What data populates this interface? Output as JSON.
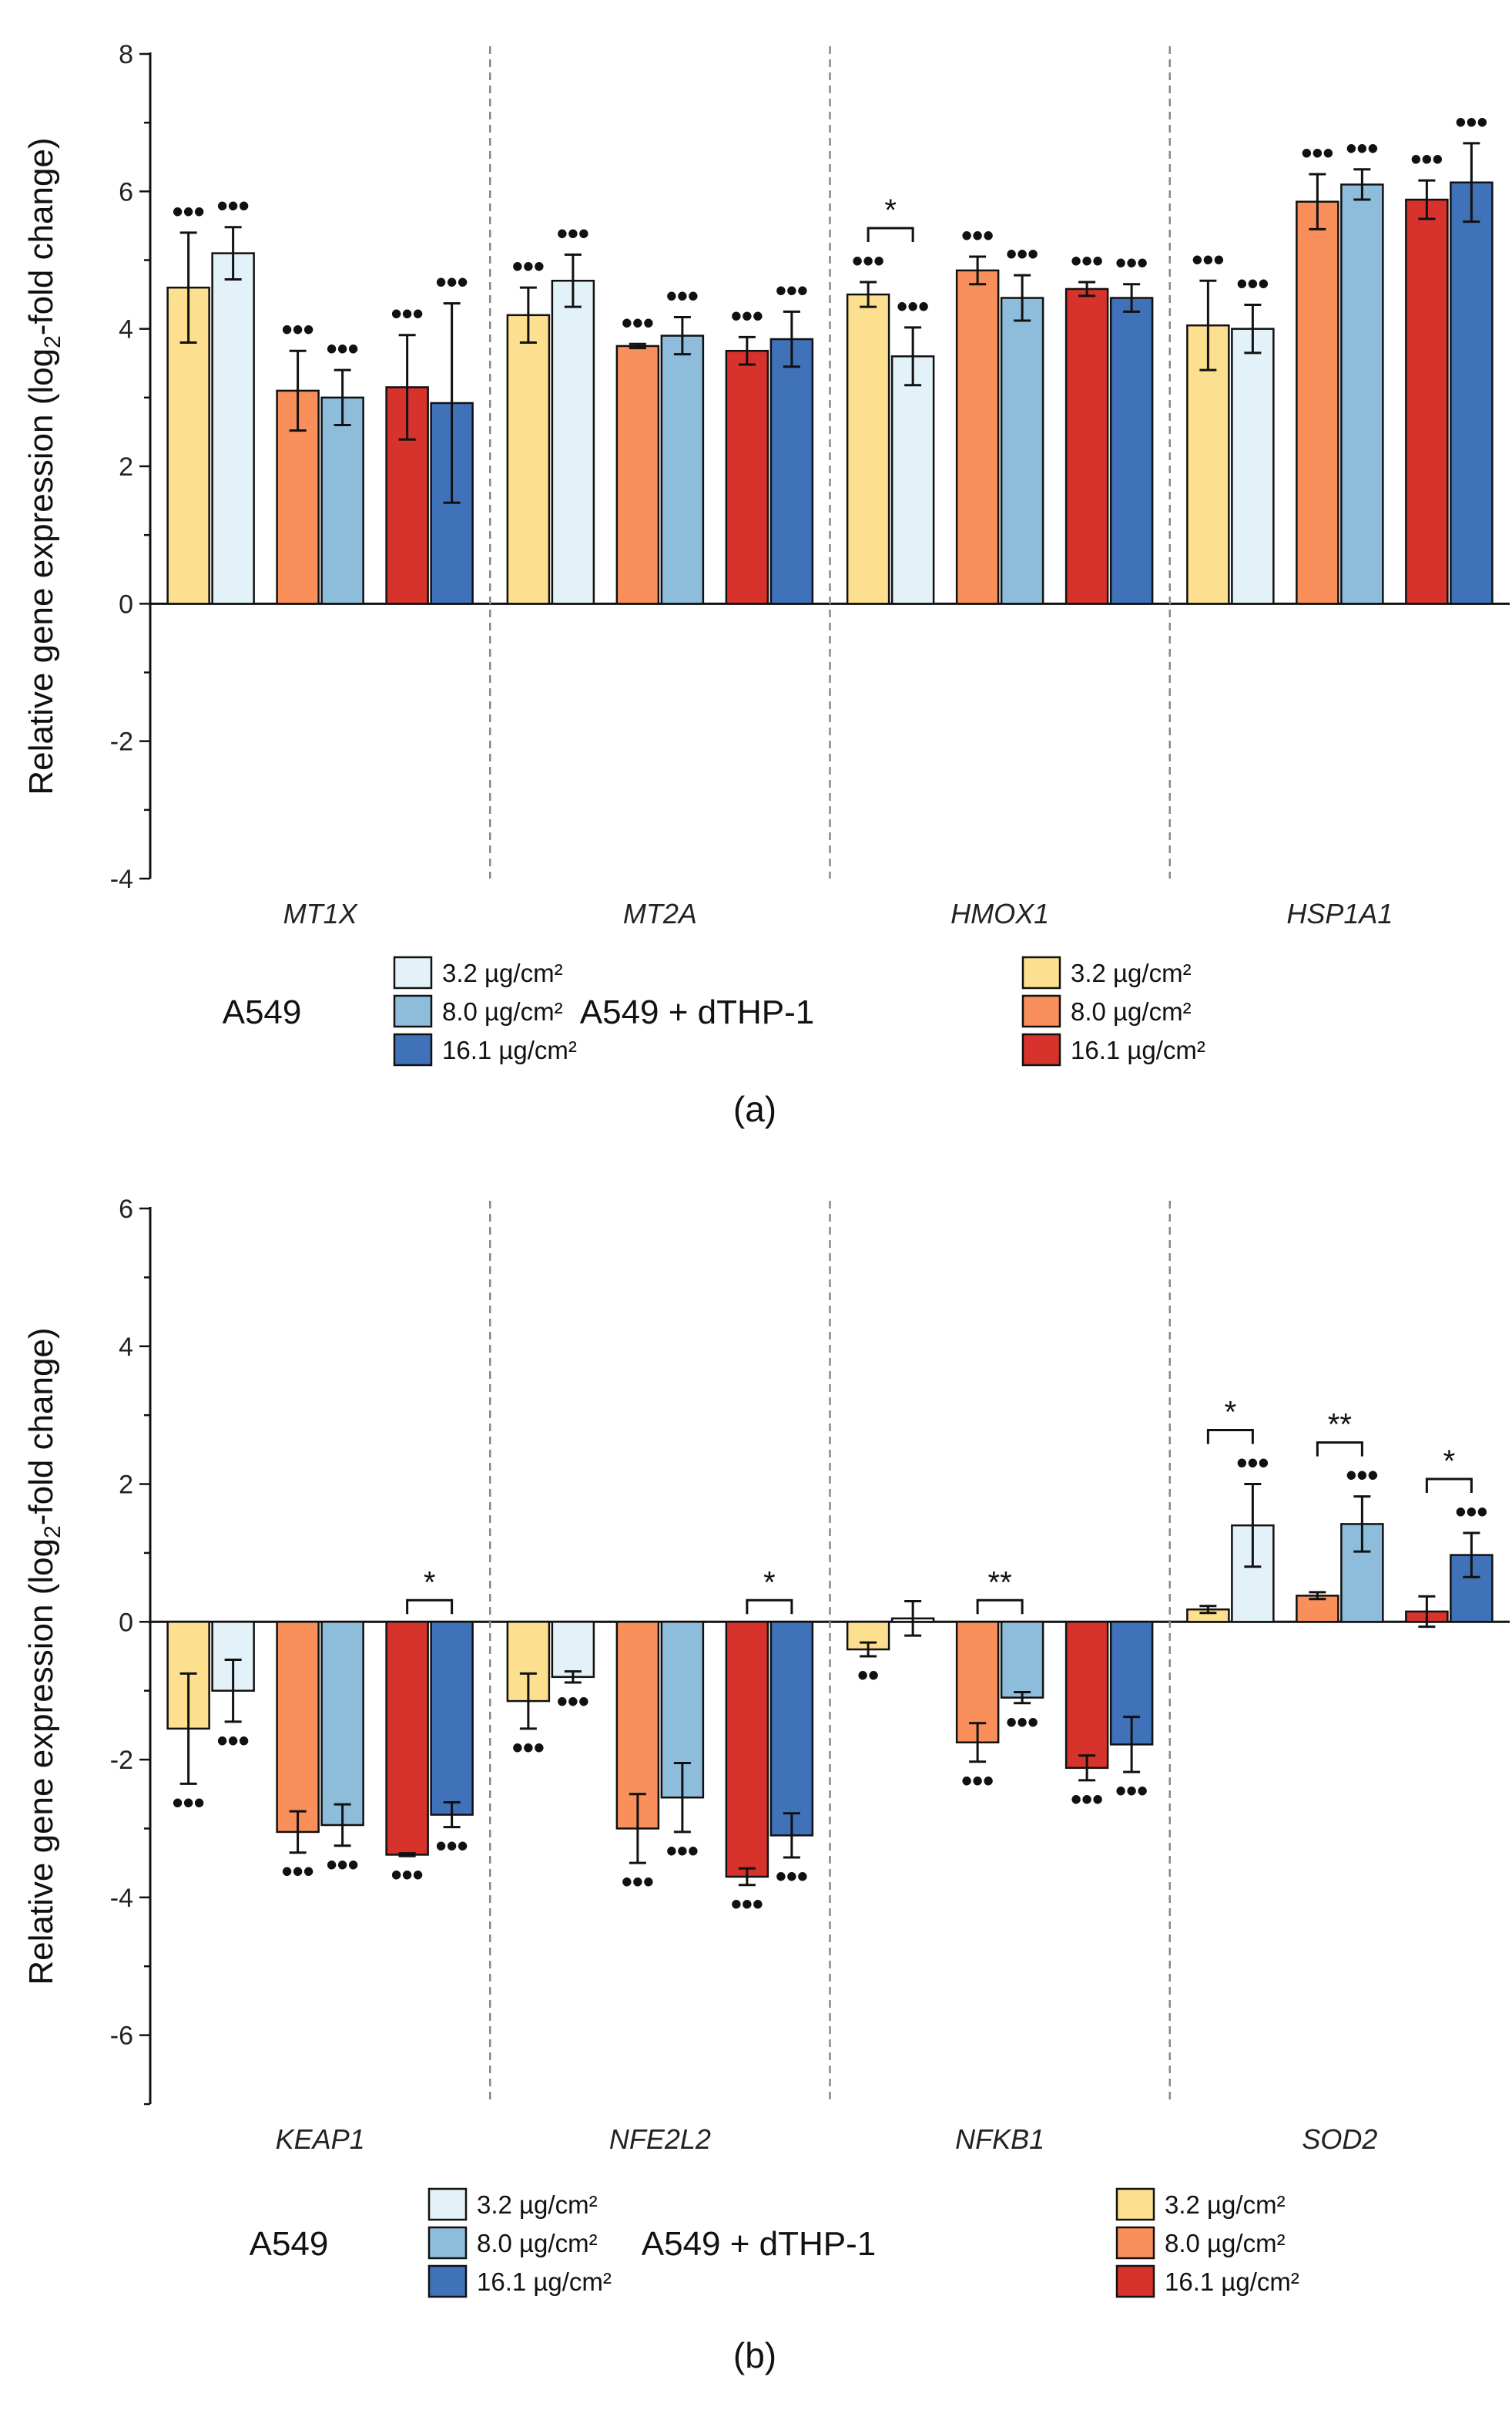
{
  "chart_data": [
    {
      "type": "bar",
      "panel_label": "(a)",
      "ylabel_main": "Relative gene expression (log",
      "ylabel_sub": "2",
      "ylabel_tail": "-fold change)",
      "ylim": [
        -4,
        8
      ],
      "yticks": [
        -4,
        -2,
        0,
        2,
        4,
        6,
        8
      ],
      "genes": [
        "MT1X",
        "MT2A",
        "HMOX1",
        "HSP1A1"
      ],
      "series": [
        {
          "name": "A549 + dTHP-1 3.2 µg/cm²",
          "color": "#FDE08F",
          "values": [
            4.6,
            4.2,
            4.5,
            4.05
          ],
          "errors": [
            0.8,
            0.4,
            0.18,
            0.65
          ],
          "marks": [
            "•••",
            "•••",
            "•••",
            "•••"
          ]
        },
        {
          "name": "A549 3.2 µg/cm²",
          "color": "#E3F2F8",
          "values": [
            5.1,
            4.7,
            3.6,
            4.0
          ],
          "errors": [
            0.38,
            0.38,
            0.42,
            0.35
          ],
          "marks": [
            "•••",
            "•••",
            "•••",
            "•••"
          ]
        },
        {
          "name": "A549 + dTHP-1 8.0 µg/cm²",
          "color": "#F98F5A",
          "values": [
            3.1,
            3.75,
            4.85,
            5.85
          ],
          "errors": [
            0.58,
            0.03,
            0.2,
            0.4
          ],
          "marks": [
            "•••",
            "•••",
            "•••",
            "•••"
          ]
        },
        {
          "name": "A549 8.0 µg/cm²",
          "color": "#8EBDDB",
          "values": [
            3.0,
            3.9,
            4.45,
            6.1
          ],
          "errors": [
            0.4,
            0.27,
            0.33,
            0.22
          ],
          "marks": [
            "•••",
            "•••",
            "•••",
            "•••"
          ]
        },
        {
          "name": "A549 + dTHP-1 16.1 µg/cm²",
          "color": "#D7322B",
          "values": [
            3.15,
            3.68,
            4.58,
            5.88
          ],
          "errors": [
            0.76,
            0.2,
            0.1,
            0.28
          ],
          "marks": [
            "•••",
            "•••",
            "•••",
            "•••"
          ]
        },
        {
          "name": "A549 16.1 µg/cm²",
          "color": "#3F72B8",
          "values": [
            2.92,
            3.85,
            4.45,
            6.13
          ],
          "errors": [
            1.45,
            0.4,
            0.2,
            0.57
          ],
          "marks": [
            "•••",
            "•••",
            "•••",
            "•••"
          ]
        }
      ],
      "brackets": [
        {
          "gene": 2,
          "pair": 0,
          "label": "*"
        }
      ],
      "legend": {
        "group_a": "A549",
        "group_b": "A549 + dTHP-1",
        "a_items": [
          "3.2 µg/cm²",
          "8.0 µg/cm²",
          "16.1 µg/cm²"
        ],
        "b_items": [
          "3.2 µg/cm²",
          "8.0 µg/cm²",
          "16.1 µg/cm²"
        ]
      }
    },
    {
      "type": "bar",
      "panel_label": "(b)",
      "ylabel_main": "Relative gene expression (log",
      "ylabel_sub": "2",
      "ylabel_tail": "-fold change)",
      "ylim": [
        -7,
        6
      ],
      "yticks": [
        -6,
        -4,
        -2,
        0,
        2,
        4,
        6
      ],
      "genes": [
        "KEAP1",
        "NFE2L2",
        "NFKB1",
        "SOD2"
      ],
      "series": [
        {
          "name": "A549 + dTHP-1 3.2 µg/cm²",
          "color": "#FDE08F",
          "values": [
            -1.55,
            -1.15,
            -0.4,
            0.18
          ],
          "errors": [
            0.8,
            0.4,
            0.1,
            0.05
          ],
          "marks": [
            "•••",
            "•••",
            "••",
            ""
          ]
        },
        {
          "name": "A549 3.2 µg/cm²",
          "color": "#E3F2F8",
          "values": [
            -1.0,
            -0.8,
            0.05,
            1.4
          ],
          "errors": [
            0.45,
            0.08,
            0.25,
            0.6
          ],
          "marks": [
            "•••",
            "•••",
            "",
            "•••"
          ]
        },
        {
          "name": "A549 + dTHP-1 8.0 µg/cm²",
          "color": "#F98F5A",
          "values": [
            -3.05,
            -3.0,
            -1.75,
            0.38
          ],
          "errors": [
            0.3,
            0.5,
            0.28,
            0.05
          ],
          "marks": [
            "•••",
            "•••",
            "•••",
            ""
          ]
        },
        {
          "name": "A549 8.0 µg/cm²",
          "color": "#8EBDDB",
          "values": [
            -2.95,
            -2.55,
            -1.1,
            1.42
          ],
          "errors": [
            0.3,
            0.5,
            0.08,
            0.4
          ],
          "marks": [
            "•••",
            "•••",
            "•••",
            "•••"
          ]
        },
        {
          "name": "A549 + dTHP-1 16.1 µg/cm²",
          "color": "#D7322B",
          "values": [
            -3.38,
            -3.7,
            -2.12,
            0.15
          ],
          "errors": [
            0.02,
            0.12,
            0.18,
            0.22
          ],
          "marks": [
            "•••",
            "•••",
            "•••",
            ""
          ]
        },
        {
          "name": "A549 16.1 µg/cm²",
          "color": "#3F72B8",
          "values": [
            -2.8,
            -3.1,
            -1.78,
            0.97
          ],
          "errors": [
            0.18,
            0.32,
            0.4,
            0.32
          ],
          "marks": [
            "•••",
            "•••",
            "•••",
            "•••"
          ]
        }
      ],
      "brackets": [
        {
          "gene": 0,
          "pair": 2,
          "label": "*"
        },
        {
          "gene": 1,
          "pair": 2,
          "label": "*"
        },
        {
          "gene": 2,
          "pair": 1,
          "label": "**"
        },
        {
          "gene": 3,
          "pair": 0,
          "label": "*"
        },
        {
          "gene": 3,
          "pair": 1,
          "label": "**"
        },
        {
          "gene": 3,
          "pair": 2,
          "label": "*"
        }
      ],
      "legend": {
        "group_a": "A549",
        "group_b": "A549 + dTHP-1",
        "a_items": [
          "3.2 µg/cm²",
          "8.0 µg/cm²",
          "16.1 µg/cm²"
        ],
        "b_items": [
          "3.2 µg/cm²",
          "8.0 µg/cm²",
          "16.1 µg/cm²"
        ]
      }
    }
  ]
}
